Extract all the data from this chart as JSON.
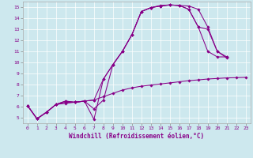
{
  "background_color": "#cde8ee",
  "line_color": "#880088",
  "xlabel": "Windchill (Refroidissement éolien,°C)",
  "xlim": [
    -0.5,
    23.5
  ],
  "ylim": [
    4.5,
    15.5
  ],
  "xticks": [
    0,
    1,
    2,
    3,
    4,
    5,
    6,
    7,
    8,
    9,
    10,
    11,
    12,
    13,
    14,
    15,
    16,
    17,
    18,
    19,
    20,
    21,
    22,
    23
  ],
  "yticks": [
    5,
    6,
    7,
    8,
    9,
    10,
    11,
    12,
    13,
    14,
    15
  ],
  "lines": [
    {
      "x": [
        0,
        1,
        2,
        3,
        4,
        5,
        6,
        7,
        8,
        9,
        10,
        11,
        12,
        13,
        14,
        15,
        16,
        17,
        18,
        19,
        20,
        21
      ],
      "y": [
        6.1,
        4.9,
        5.5,
        6.2,
        6.5,
        6.4,
        6.5,
        4.85,
        8.5,
        9.8,
        11.0,
        12.5,
        14.6,
        14.95,
        15.1,
        15.2,
        15.15,
        15.1,
        14.8,
        13.2,
        11.0,
        10.5
      ]
    },
    {
      "x": [
        0,
        1,
        2,
        3,
        4,
        5,
        6,
        7,
        8,
        9,
        10,
        11,
        12,
        13,
        14,
        15,
        16,
        17,
        18,
        19,
        20,
        21
      ],
      "y": [
        6.1,
        4.9,
        5.5,
        6.2,
        6.5,
        6.4,
        6.5,
        5.8,
        6.6,
        9.8,
        11.0,
        12.5,
        14.6,
        14.95,
        15.1,
        15.2,
        15.15,
        14.8,
        13.2,
        11.0,
        10.5,
        10.5
      ]
    },
    {
      "x": [
        0,
        1,
        2,
        3,
        4,
        5,
        6,
        7,
        8,
        9,
        10,
        11,
        12,
        13,
        14,
        15,
        16,
        17,
        18,
        19,
        20,
        21,
        22,
        23
      ],
      "y": [
        6.1,
        4.9,
        5.5,
        6.2,
        6.4,
        6.4,
        6.5,
        6.6,
        8.5,
        9.8,
        11.0,
        12.5,
        14.6,
        14.95,
        15.15,
        15.2,
        15.15,
        14.8,
        13.2,
        13.0,
        11.0,
        10.4,
        null,
        null
      ]
    },
    {
      "x": [
        0,
        1,
        2,
        3,
        4,
        5,
        6,
        7,
        8,
        9,
        10,
        11,
        12,
        13,
        14,
        15,
        16,
        17,
        18,
        19,
        20,
        21,
        22,
        23
      ],
      "y": [
        6.1,
        4.9,
        5.5,
        6.2,
        6.3,
        6.4,
        6.5,
        6.6,
        6.9,
        7.2,
        7.5,
        7.7,
        7.85,
        7.95,
        8.05,
        8.15,
        8.25,
        8.35,
        8.42,
        8.5,
        8.55,
        8.6,
        8.62,
        8.65
      ]
    }
  ]
}
